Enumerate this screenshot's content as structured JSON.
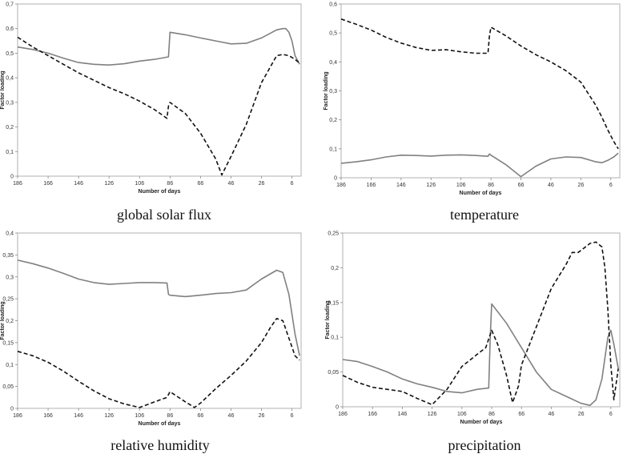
{
  "panels": [
    {
      "caption": "global solar flux",
      "chart_data": {
        "type": "line",
        "xlabel": "Number of days",
        "ylabel": "Factor loading",
        "x_reversed": true,
        "xlim": [
          186,
          0
        ],
        "ylim": [
          0,
          0.7
        ],
        "xticks": [
          186,
          166,
          146,
          126,
          106,
          86,
          66,
          46,
          26,
          6
        ],
        "yticks": [
          "0",
          "0,1",
          "0,2",
          "0,3",
          "0,4",
          "0,5",
          "0,6",
          "0,7"
        ],
        "yticks_values": [
          0,
          0.1,
          0.2,
          0.3,
          0.4,
          0.5,
          0.6,
          0.7
        ],
        "grid": false,
        "series": [
          {
            "style": "solid",
            "color": "#808080",
            "x": [
              186,
              176,
              166,
              156,
              146,
              136,
              126,
              116,
              106,
              96,
              87,
              86,
              76,
              66,
              56,
              46,
              36,
              26,
              16,
              12,
              10,
              8,
              6,
              4,
              1
            ],
            "y": [
              0.525,
              0.515,
              0.5,
              0.48,
              0.462,
              0.455,
              0.452,
              0.457,
              0.468,
              0.475,
              0.485,
              0.585,
              0.575,
              0.562,
              0.55,
              0.538,
              0.54,
              0.562,
              0.595,
              0.6,
              0.6,
              0.585,
              0.55,
              0.49,
              0.455
            ]
          },
          {
            "style": "dashed",
            "color": "#111111",
            "x": [
              186,
              176,
              166,
              156,
              146,
              136,
              126,
              116,
              106,
              96,
              88,
              87,
              86,
              76,
              66,
              56,
              52,
              46,
              36,
              26,
              16,
              12,
              8,
              4,
              1
            ],
            "y": [
              0.565,
              0.525,
              0.49,
              0.455,
              0.42,
              0.39,
              0.36,
              0.335,
              0.305,
              0.27,
              0.235,
              0.285,
              0.3,
              0.255,
              0.175,
              0.07,
              0.005,
              0.08,
              0.21,
              0.38,
              0.49,
              0.495,
              0.49,
              0.475,
              0.46
            ]
          }
        ]
      }
    },
    {
      "caption": "temperature",
      "chart_data": {
        "type": "line",
        "xlabel": "Number of days",
        "ylabel": "Factor loading",
        "x_reversed": true,
        "xlim": [
          186,
          0
        ],
        "ylim": [
          0,
          0.6
        ],
        "xticks": [
          186,
          166,
          146,
          126,
          106,
          86,
          66,
          46,
          26,
          6
        ],
        "yticks": [
          "0",
          "0,1",
          "0,2",
          "0,3",
          "0,4",
          "0,5",
          "0,6"
        ],
        "yticks_values": [
          0,
          0.1,
          0.2,
          0.3,
          0.4,
          0.5,
          0.6
        ],
        "grid": false,
        "series": [
          {
            "style": "solid",
            "color": "#808080",
            "x": [
              186,
              176,
              166,
              156,
              146,
              136,
              126,
              116,
              106,
              96,
              88,
              87,
              86,
              76,
              66,
              56,
              46,
              36,
              26,
              16,
              12,
              8,
              4,
              1
            ],
            "y": [
              0.05,
              0.055,
              0.062,
              0.072,
              0.078,
              0.077,
              0.075,
              0.078,
              0.079,
              0.077,
              0.074,
              0.082,
              0.078,
              0.045,
              0.004,
              0.04,
              0.065,
              0.072,
              0.07,
              0.055,
              0.052,
              0.06,
              0.072,
              0.085
            ]
          },
          {
            "style": "dashed",
            "color": "#111111",
            "x": [
              186,
              176,
              166,
              156,
              146,
              136,
              126,
              116,
              106,
              96,
              88,
              87,
              86,
              76,
              66,
              56,
              46,
              36,
              26,
              16,
              12,
              8,
              4,
              1
            ],
            "y": [
              0.548,
              0.53,
              0.51,
              0.485,
              0.465,
              0.45,
              0.44,
              0.442,
              0.435,
              0.43,
              0.43,
              0.49,
              0.52,
              0.49,
              0.455,
              0.425,
              0.4,
              0.37,
              0.33,
              0.25,
              0.21,
              0.165,
              0.125,
              0.1
            ]
          }
        ]
      }
    },
    {
      "caption": "relative humidity",
      "chart_data": {
        "type": "line",
        "xlabel": "Number of days",
        "ylabel": "Factor loading",
        "x_reversed": true,
        "xlim": [
          186,
          0
        ],
        "ylim": [
          0,
          0.4
        ],
        "xticks": [
          186,
          166,
          146,
          126,
          106,
          86,
          66,
          46,
          26,
          6
        ],
        "yticks": [
          "0",
          "0,05",
          "0,1",
          "0,15",
          "0,2",
          "0,25",
          "0,3",
          "0,35",
          "0,4"
        ],
        "yticks_values": [
          0,
          0.05,
          0.1,
          0.15,
          0.2,
          0.25,
          0.3,
          0.35,
          0.4
        ],
        "grid": false,
        "series": [
          {
            "style": "solid",
            "color": "#808080",
            "x": [
              186,
              176,
              166,
              156,
              146,
              136,
              126,
              116,
              106,
              96,
              88,
              87,
              86,
              76,
              66,
              56,
              46,
              36,
              26,
              16,
              12,
              8,
              4,
              1
            ],
            "y": [
              0.338,
              0.33,
              0.32,
              0.308,
              0.295,
              0.287,
              0.283,
              0.285,
              0.287,
              0.287,
              0.286,
              0.26,
              0.258,
              0.255,
              0.258,
              0.262,
              0.264,
              0.27,
              0.295,
              0.315,
              0.31,
              0.26,
              0.17,
              0.12
            ]
          },
          {
            "style": "dashed",
            "color": "#111111",
            "x": [
              186,
              176,
              166,
              156,
              146,
              136,
              126,
              116,
              106,
              96,
              88,
              86,
              76,
              70,
              66,
              56,
              46,
              36,
              26,
              20,
              16,
              12,
              8,
              4,
              1
            ],
            "y": [
              0.13,
              0.12,
              0.105,
              0.085,
              0.062,
              0.04,
              0.022,
              0.01,
              0.002,
              0.015,
              0.025,
              0.038,
              0.015,
              0.002,
              0.012,
              0.045,
              0.075,
              0.108,
              0.15,
              0.185,
              0.205,
              0.2,
              0.16,
              0.12,
              0.11
            ]
          }
        ]
      }
    },
    {
      "caption": "precipitation",
      "chart_data": {
        "type": "line",
        "xlabel": "Number of days",
        "ylabel": "Factor loading",
        "x_reversed": true,
        "xlim": [
          186,
          0
        ],
        "ylim": [
          0,
          0.25
        ],
        "xticks": [
          186,
          166,
          146,
          126,
          106,
          86,
          66,
          46,
          26,
          6
        ],
        "yticks": [
          "0",
          "0,05",
          "0,1",
          "0,15",
          "0,2",
          "0,25"
        ],
        "yticks_values": [
          0,
          0.05,
          0.1,
          0.15,
          0.2,
          0.25
        ],
        "grid": false,
        "series": [
          {
            "style": "solid",
            "color": "#808080",
            "x": [
              186,
              176,
              166,
              156,
              146,
              136,
              126,
              116,
              106,
              96,
              88,
              87,
              86,
              76,
              66,
              56,
              46,
              36,
              26,
              20,
              16,
              12,
              8,
              6,
              4,
              1
            ],
            "y": [
              0.068,
              0.065,
              0.058,
              0.05,
              0.04,
              0.033,
              0.028,
              0.022,
              0.02,
              0.025,
              0.027,
              0.1,
              0.148,
              0.12,
              0.085,
              0.05,
              0.025,
              0.015,
              0.005,
              0.002,
              0.01,
              0.04,
              0.1,
              0.11,
              0.09,
              0.055
            ]
          },
          {
            "style": "dashed",
            "color": "#111111",
            "x": [
              186,
              176,
              166,
              156,
              146,
              136,
              126,
              116,
              106,
              96,
              90,
              86,
              82,
              76,
              72,
              68,
              66,
              56,
              46,
              36,
              32,
              28,
              26,
              20,
              16,
              12,
              10,
              8,
              6,
              4,
              1
            ],
            "y": [
              0.045,
              0.035,
              0.028,
              0.025,
              0.022,
              0.012,
              0.003,
              0.025,
              0.058,
              0.075,
              0.085,
              0.11,
              0.09,
              0.045,
              0.006,
              0.03,
              0.06,
              0.115,
              0.17,
              0.205,
              0.222,
              0.222,
              0.225,
              0.235,
              0.237,
              0.23,
              0.2,
              0.14,
              0.06,
              0.01,
              0.055
            ]
          }
        ]
      }
    }
  ]
}
